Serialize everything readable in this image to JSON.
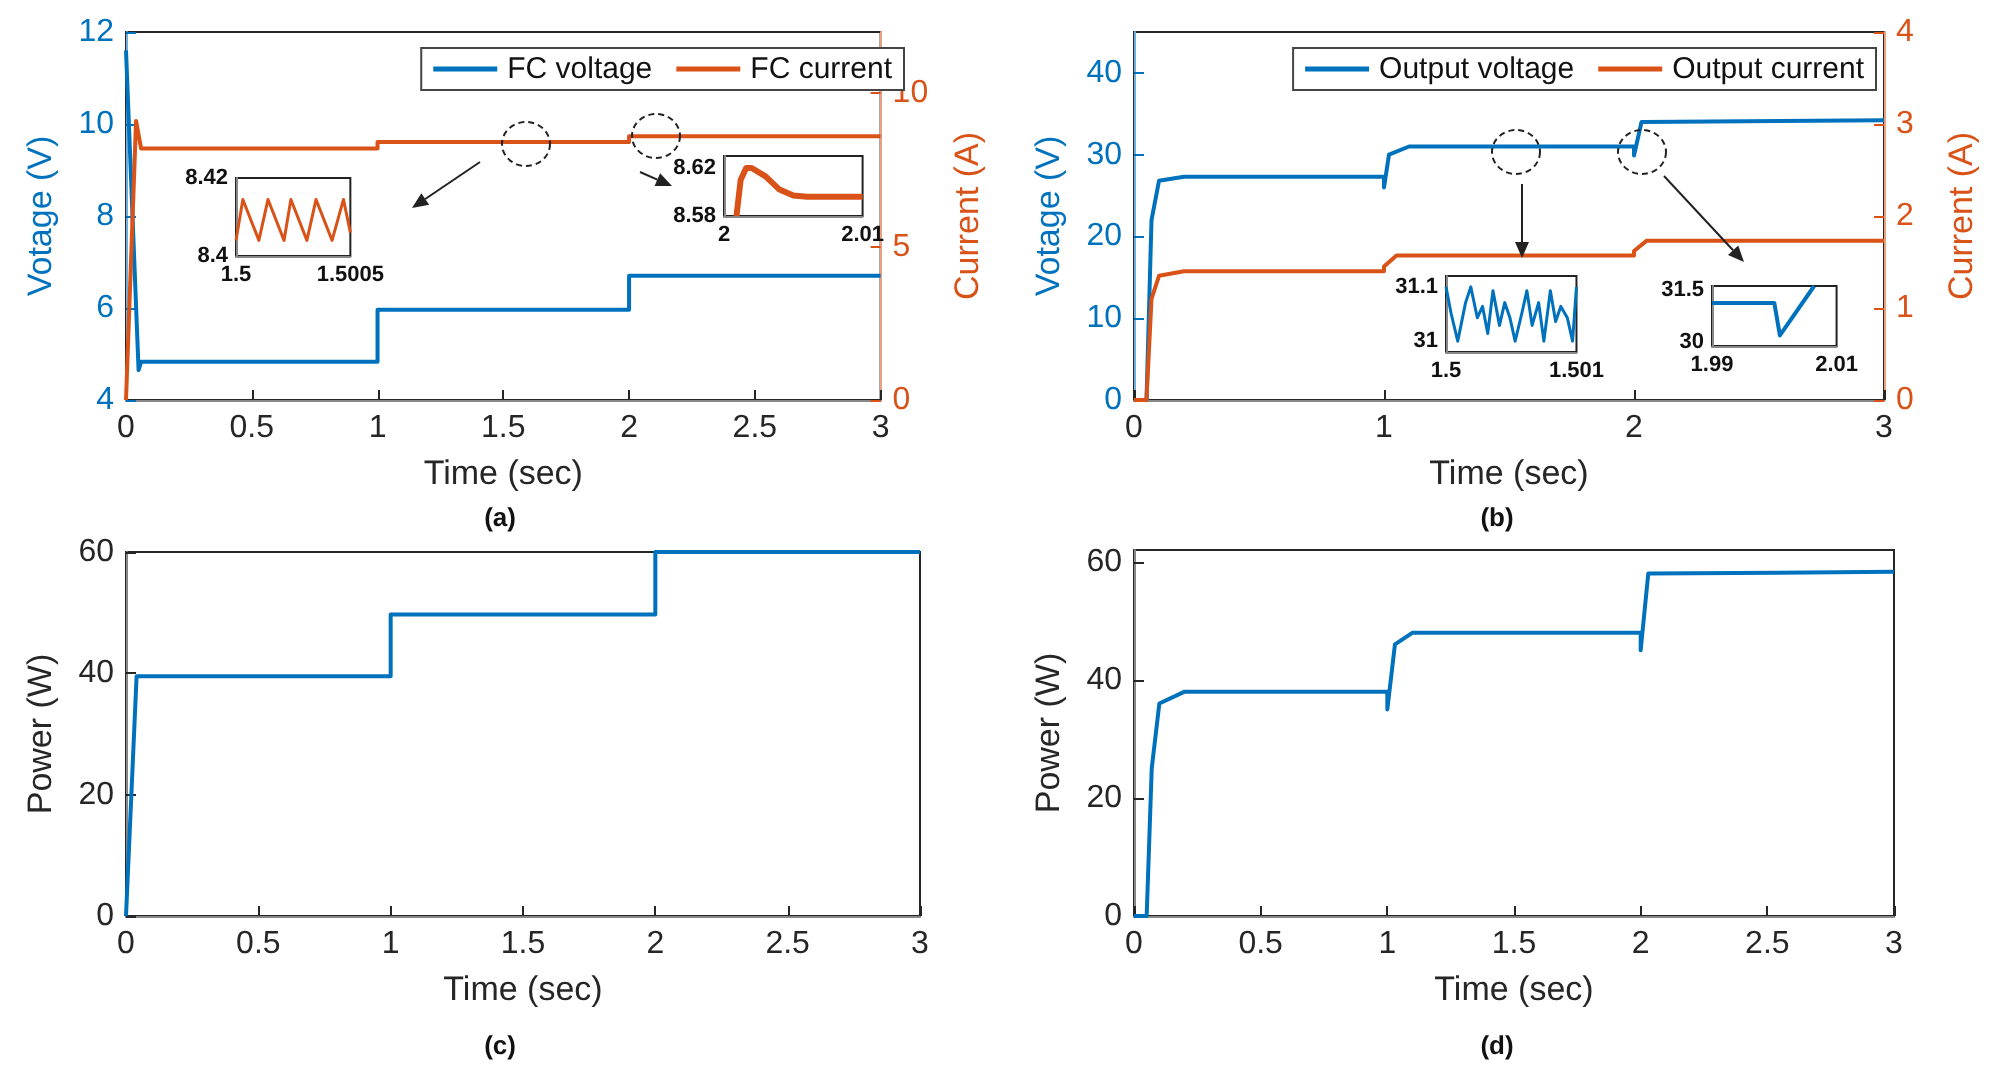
{
  "chart_data": [
    {
      "type": "line",
      "title": "(a)",
      "xlabel": "Time (sec)",
      "ylabel": "Votage (V)",
      "y2label": "Current (A)",
      "xlim": [
        0,
        3
      ],
      "xticks": [
        0,
        0.5,
        1,
        1.5,
        2,
        2.5,
        3
      ],
      "ylim": [
        4,
        12
      ],
      "yticks": [
        4,
        6,
        8,
        10,
        12
      ],
      "y2lim": [
        0,
        12
      ],
      "y2ticks": [
        0,
        5,
        10
      ],
      "legend": "top right",
      "series": [
        {
          "name": "FC voltage",
          "color": "#0072bd",
          "x": [
            0,
            0.05,
            0.06,
            1,
            1,
            2,
            2,
            3
          ],
          "values": [
            11.6,
            4.65,
            4.83,
            4.83,
            5.96,
            5.96,
            6.7,
            6.7
          ]
        },
        {
          "name": "FC current",
          "color": "#d95319",
          "axis": "y2",
          "x": [
            0,
            0.04,
            0.06,
            1,
            1,
            2,
            2,
            3
          ],
          "values": [
            0,
            9.1,
            8.2,
            8.2,
            8.41,
            8.41,
            8.6,
            8.6
          ]
        }
      ]
    },
    {
      "type": "line",
      "xlim": [
        1.5,
        1.5005
      ],
      "xticks": [
        1.5,
        1.5005
      ],
      "ylim": [
        8.4,
        8.42
      ],
      "yticks": [
        8.4,
        8.42
      ],
      "series": [
        {
          "color": "#d95319",
          "x": [
            1.5,
            1.50003,
            1.5001,
            1.50014,
            1.50021,
            1.50024,
            1.50031,
            1.50035,
            1.50042,
            1.50047,
            1.5005
          ],
          "values": [
            8.404,
            8.4145,
            8.404,
            8.4145,
            8.404,
            8.4145,
            8.404,
            8.4145,
            8.404,
            8.4145,
            8.406
          ]
        }
      ]
    },
    {
      "type": "line",
      "xlim": [
        2,
        2.01
      ],
      "xticks": [
        2,
        2.01
      ],
      "ylim": [
        8.58,
        8.63
      ],
      "yticks": [
        8.58,
        8.62
      ],
      "series": [
        {
          "color": "#d95319",
          "x": [
            2.0009,
            2.0012,
            2.0016,
            2.002,
            2.003,
            2.004,
            2.005,
            2.006,
            2.008,
            2.01
          ],
          "values": [
            8.58,
            8.61,
            8.62,
            8.62,
            8.613,
            8.602,
            8.597,
            8.596,
            8.596,
            8.596
          ]
        }
      ]
    },
    {
      "type": "line",
      "title": "(b)",
      "xlabel": "Time (sec)",
      "ylabel": "Votage (V)",
      "y2label": "Current (A)",
      "xlim": [
        0,
        3
      ],
      "xticks": [
        0,
        1,
        2,
        3
      ],
      "ylim": [
        0,
        45
      ],
      "yticks": [
        0,
        10,
        20,
        30,
        40
      ],
      "y2lim": [
        0,
        4
      ],
      "y2ticks": [
        0,
        1,
        2,
        3,
        4
      ],
      "legend": "top right",
      "series": [
        {
          "name": "Output voltage",
          "color": "#0072bd",
          "x": [
            0,
            0.05,
            0.07,
            0.1,
            0.2,
            1,
            1,
            1.02,
            1.1,
            2,
            2,
            2.03,
            3
          ],
          "values": [
            0,
            0,
            22,
            26.8,
            27.3,
            27.3,
            26,
            30,
            31,
            31,
            29.9,
            34,
            34.2
          ]
        },
        {
          "name": "Output current",
          "color": "#d95319",
          "axis": "y2",
          "x": [
            0,
            0.05,
            0.07,
            0.1,
            0.2,
            1,
            1,
            1.05,
            2,
            2,
            2.05,
            3
          ],
          "values": [
            0,
            0,
            1.1,
            1.35,
            1.4,
            1.4,
            1.45,
            1.57,
            1.57,
            1.62,
            1.73,
            1.73
          ]
        }
      ]
    },
    {
      "type": "line",
      "xlim": [
        1.5,
        1.501
      ],
      "xticks": [
        1.5,
        1.501
      ],
      "ylim": [
        30.98,
        31.12
      ],
      "yticks": [
        31,
        31.1
      ],
      "series": [
        {
          "color": "#0072bd",
          "x": [
            1.5,
            1.50004,
            1.50009,
            1.50015,
            1.50019,
            1.50024,
            1.50028,
            1.50032,
            1.50036,
            1.50041,
            1.50045,
            1.50049,
            1.50053,
            1.50058,
            1.50062,
            1.50066,
            1.50071,
            1.50075,
            1.5008,
            1.50084,
            1.50088,
            1.50093,
            1.50097,
            1.501
          ],
          "values": [
            31.1,
            31.05,
            31.0,
            31.071,
            31.1,
            31.043,
            31.064,
            31.014,
            31.093,
            31.029,
            31.071,
            31.043,
            31.0,
            31.05,
            31.093,
            31.029,
            31.071,
            31.0,
            31.093,
            31.036,
            31.064,
            31.043,
            31.0,
            31.1
          ]
        }
      ]
    },
    {
      "type": "line",
      "xlim": [
        1.99,
        2.01
      ],
      "xticks": [
        1.99,
        2.01
      ],
      "ylim": [
        29.9,
        31.6
      ],
      "yticks": [
        30,
        31.5
      ],
      "series": [
        {
          "color": "#0072bd",
          "x": [
            1.99,
            2.0,
            2.0009,
            2.0064
          ],
          "values": [
            31.12,
            31.12,
            30.2,
            31.6
          ]
        }
      ]
    },
    {
      "type": "line",
      "title": "(c)",
      "xlabel": "Time (sec)",
      "ylabel": "Power (W)",
      "xlim": [
        0,
        3
      ],
      "xticks": [
        0,
        0.5,
        1,
        1.5,
        2,
        2.5,
        3
      ],
      "ylim": [
        0,
        60
      ],
      "yticks": [
        0,
        20,
        40,
        60
      ],
      "series": [
        {
          "color": "#0072bd",
          "x": [
            0,
            0.04,
            1,
            1,
            2,
            2,
            3
          ],
          "values": [
            0,
            39.5,
            39.5,
            49.7,
            49.7,
            60,
            60
          ]
        }
      ]
    },
    {
      "type": "line",
      "title": "(d)",
      "xlabel": "Time (sec)",
      "ylabel": "Power (W)",
      "xlim": [
        0,
        3
      ],
      "xticks": [
        0,
        0.5,
        1,
        1.5,
        2,
        2.5,
        3
      ],
      "ylim": [
        0,
        62
      ],
      "yticks": [
        0,
        20,
        40,
        60
      ],
      "series": [
        {
          "color": "#0072bd",
          "x": [
            0,
            0.05,
            0.07,
            0.1,
            0.2,
            1,
            1,
            1.03,
            1.1,
            2,
            2,
            2.03,
            3
          ],
          "values": [
            0,
            0,
            25,
            36,
            38,
            38,
            35,
            46,
            48,
            48,
            45,
            58,
            58.3
          ]
        }
      ]
    }
  ]
}
